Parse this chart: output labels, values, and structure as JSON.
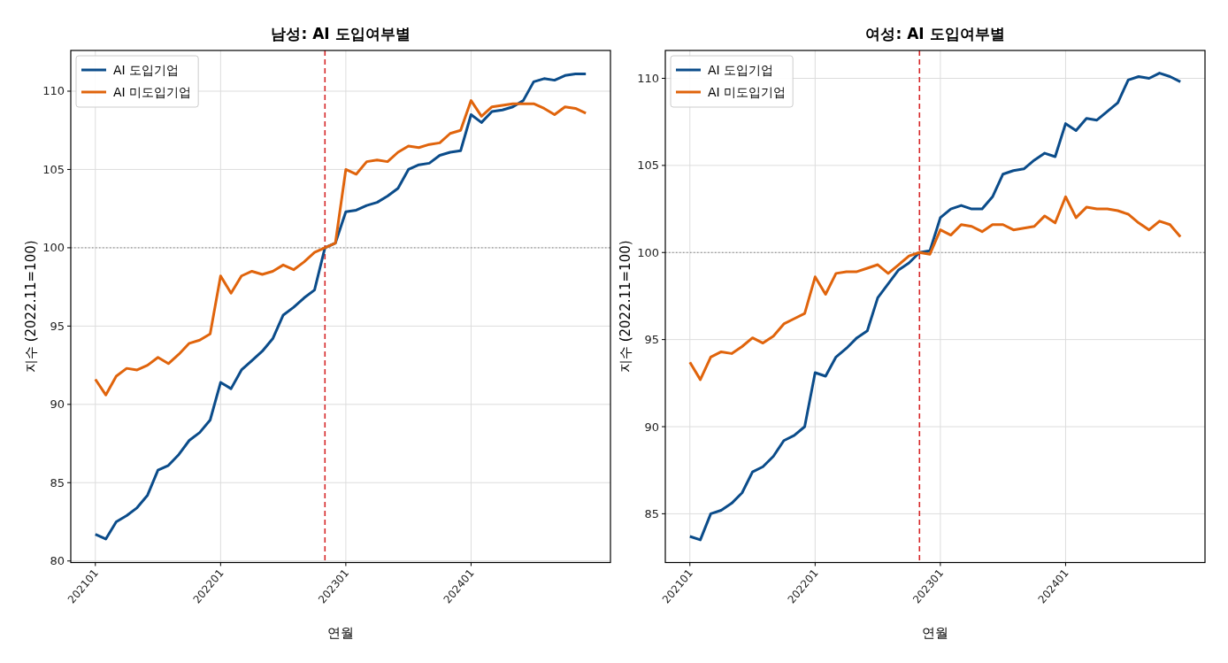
{
  "chart_data": [
    {
      "type": "line",
      "title": "남성: AI 도입여부별",
      "xlabel": "연월",
      "ylabel": "지수 (2022.11=100)",
      "x": [
        "2021-01",
        "2021-02",
        "2021-03",
        "2021-04",
        "2021-05",
        "2021-06",
        "2021-07",
        "2021-08",
        "2021-09",
        "2021-10",
        "2021-11",
        "2021-12",
        "2022-01",
        "2022-02",
        "2022-03",
        "2022-04",
        "2022-05",
        "2022-06",
        "2022-07",
        "2022-08",
        "2022-09",
        "2022-10",
        "2022-11",
        "2022-12",
        "2023-01",
        "2023-02",
        "2023-03",
        "2023-04",
        "2023-05",
        "2023-06",
        "2023-07",
        "2023-08",
        "2023-09",
        "2023-10",
        "2023-11",
        "2023-12",
        "2024-01",
        "2024-02",
        "2024-03",
        "2024-04",
        "2024-05",
        "2024-06",
        "2024-07",
        "2024-08",
        "2024-09",
        "2024-10",
        "2024-11",
        "2024-12"
      ],
      "xlim": [
        "2020-10-21",
        "2025-02-11"
      ],
      "xticks": [
        {
          "value": "2021-01",
          "label": "202101"
        },
        {
          "value": "2022-01",
          "label": "202201"
        },
        {
          "value": "2023-01",
          "label": "202301"
        },
        {
          "value": "2024-01",
          "label": "202401"
        }
      ],
      "ylim": [
        79.9,
        112.6
      ],
      "yticks": [
        80,
        85,
        90,
        95,
        100,
        105,
        110
      ],
      "grid": true,
      "legend": "top left",
      "series": [
        {
          "name": "AI 도입기업",
          "color": "#0b4c8a",
          "values": [
            81.7,
            81.4,
            82.5,
            82.9,
            83.4,
            84.2,
            85.8,
            86.1,
            86.8,
            87.7,
            88.2,
            89.0,
            91.4,
            91.0,
            92.2,
            92.8,
            93.4,
            94.2,
            95.7,
            96.2,
            96.8,
            97.3,
            100.0,
            100.3,
            102.3,
            102.4,
            102.7,
            102.9,
            103.3,
            103.8,
            105.0,
            105.3,
            105.4,
            105.9,
            106.1,
            106.2,
            108.5,
            108.0,
            108.7,
            108.8,
            109.0,
            109.4,
            110.6,
            110.8,
            110.7,
            111.0,
            111.1,
            111.1
          ]
        },
        {
          "name": "AI 미도입기업",
          "color": "#e0640c",
          "values": [
            91.6,
            90.6,
            91.8,
            92.3,
            92.2,
            92.5,
            93.0,
            92.6,
            93.2,
            93.9,
            94.1,
            94.5,
            98.2,
            97.1,
            98.2,
            98.5,
            98.3,
            98.5,
            98.9,
            98.6,
            99.1,
            99.7,
            100.0,
            100.3,
            105.0,
            104.7,
            105.5,
            105.6,
            105.5,
            106.1,
            106.5,
            106.4,
            106.6,
            106.7,
            107.3,
            107.5,
            109.4,
            108.4,
            109.0,
            109.1,
            109.2,
            109.2,
            109.2,
            108.9,
            108.5,
            109.0,
            108.9,
            108.6
          ]
        }
      ],
      "ref_lines": [
        {
          "axis": "x",
          "value": "2022-11",
          "color": "#d62728",
          "line_style": "dashed"
        },
        {
          "axis": "y",
          "value": 100,
          "color": "#808080",
          "line_style": "dotted"
        }
      ]
    },
    {
      "type": "line",
      "title": "여성: AI 도입여부별",
      "xlabel": "연월",
      "ylabel": "지수 (2022.11=100)",
      "x": [
        "2021-01",
        "2021-02",
        "2021-03",
        "2021-04",
        "2021-05",
        "2021-06",
        "2021-07",
        "2021-08",
        "2021-09",
        "2021-10",
        "2021-11",
        "2021-12",
        "2022-01",
        "2022-02",
        "2022-03",
        "2022-04",
        "2022-05",
        "2022-06",
        "2022-07",
        "2022-08",
        "2022-09",
        "2022-10",
        "2022-11",
        "2022-12",
        "2023-01",
        "2023-02",
        "2023-03",
        "2023-04",
        "2023-05",
        "2023-06",
        "2023-07",
        "2023-08",
        "2023-09",
        "2023-10",
        "2023-11",
        "2023-12",
        "2024-01",
        "2024-02",
        "2024-03",
        "2024-04",
        "2024-05",
        "2024-06",
        "2024-07",
        "2024-08",
        "2024-09",
        "2024-10",
        "2024-11",
        "2024-12"
      ],
      "xlim": [
        "2020-10-21",
        "2025-02-11"
      ],
      "xticks": [
        {
          "value": "2021-01",
          "label": "202101"
        },
        {
          "value": "2022-01",
          "label": "202201"
        },
        {
          "value": "2023-01",
          "label": "202301"
        },
        {
          "value": "2024-01",
          "label": "202401"
        }
      ],
      "ylim": [
        82.2,
        111.6
      ],
      "yticks": [
        85,
        90,
        95,
        100,
        105,
        110
      ],
      "grid": true,
      "legend": "top left",
      "series": [
        {
          "name": "AI 도입기업",
          "color": "#0b4c8a",
          "values": [
            83.7,
            83.5,
            85.0,
            85.2,
            85.6,
            86.2,
            87.4,
            87.7,
            88.3,
            89.2,
            89.5,
            90.0,
            93.1,
            92.9,
            94.0,
            94.5,
            95.1,
            95.5,
            97.4,
            98.2,
            99.0,
            99.4,
            100.0,
            100.1,
            102.0,
            102.5,
            102.7,
            102.5,
            102.5,
            103.2,
            104.5,
            104.7,
            104.8,
            105.3,
            105.7,
            105.5,
            107.4,
            107.0,
            107.7,
            107.6,
            108.1,
            108.6,
            109.9,
            110.1,
            110.0,
            110.3,
            110.1,
            109.8
          ]
        },
        {
          "name": "AI 미도입기업",
          "color": "#e0640c",
          "values": [
            93.7,
            92.7,
            94.0,
            94.3,
            94.2,
            94.6,
            95.1,
            94.8,
            95.2,
            95.9,
            96.2,
            96.5,
            98.6,
            97.6,
            98.8,
            98.9,
            98.9,
            99.1,
            99.3,
            98.8,
            99.3,
            99.8,
            100.0,
            99.9,
            101.3,
            101.0,
            101.6,
            101.5,
            101.2,
            101.6,
            101.6,
            101.3,
            101.4,
            101.5,
            102.1,
            101.7,
            103.2,
            102.0,
            102.6,
            102.5,
            102.5,
            102.4,
            102.2,
            101.7,
            101.3,
            101.8,
            101.6,
            100.9
          ]
        }
      ],
      "ref_lines": [
        {
          "axis": "x",
          "value": "2022-11",
          "color": "#d62728",
          "line_style": "dashed"
        },
        {
          "axis": "y",
          "value": 100,
          "color": "#808080",
          "line_style": "dotted"
        }
      ]
    }
  ]
}
